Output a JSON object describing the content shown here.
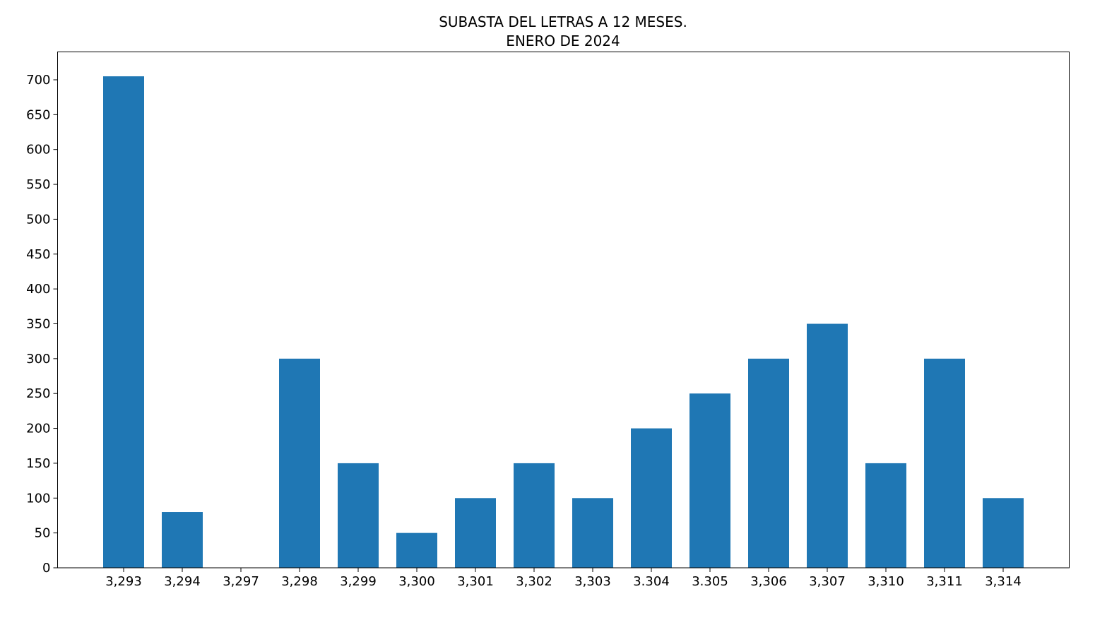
{
  "chart_data": {
    "type": "bar",
    "title": "SUBASTA DEL LETRAS A 12 MESES.",
    "subtitle": "ENERO DE 2024",
    "xlabel": "",
    "ylabel": "",
    "categories": [
      "3,293",
      "3,294",
      "3,297",
      "3,298",
      "3,299",
      "3,300",
      "3,301",
      "3,302",
      "3,303",
      "3.304",
      "3.305",
      "3,306",
      "3,307",
      "3,310",
      "3,311",
      "3,314"
    ],
    "values": [
      705,
      80,
      0,
      300,
      150,
      50,
      100,
      150,
      100,
      200,
      250,
      300,
      350,
      150,
      300,
      100
    ],
    "ylim": [
      0,
      740
    ],
    "yticks": [
      0,
      50,
      100,
      150,
      200,
      250,
      300,
      350,
      400,
      450,
      500,
      550,
      600,
      650,
      700
    ],
    "bar_color": "#1f77b4",
    "grid": false,
    "legend": "none"
  }
}
